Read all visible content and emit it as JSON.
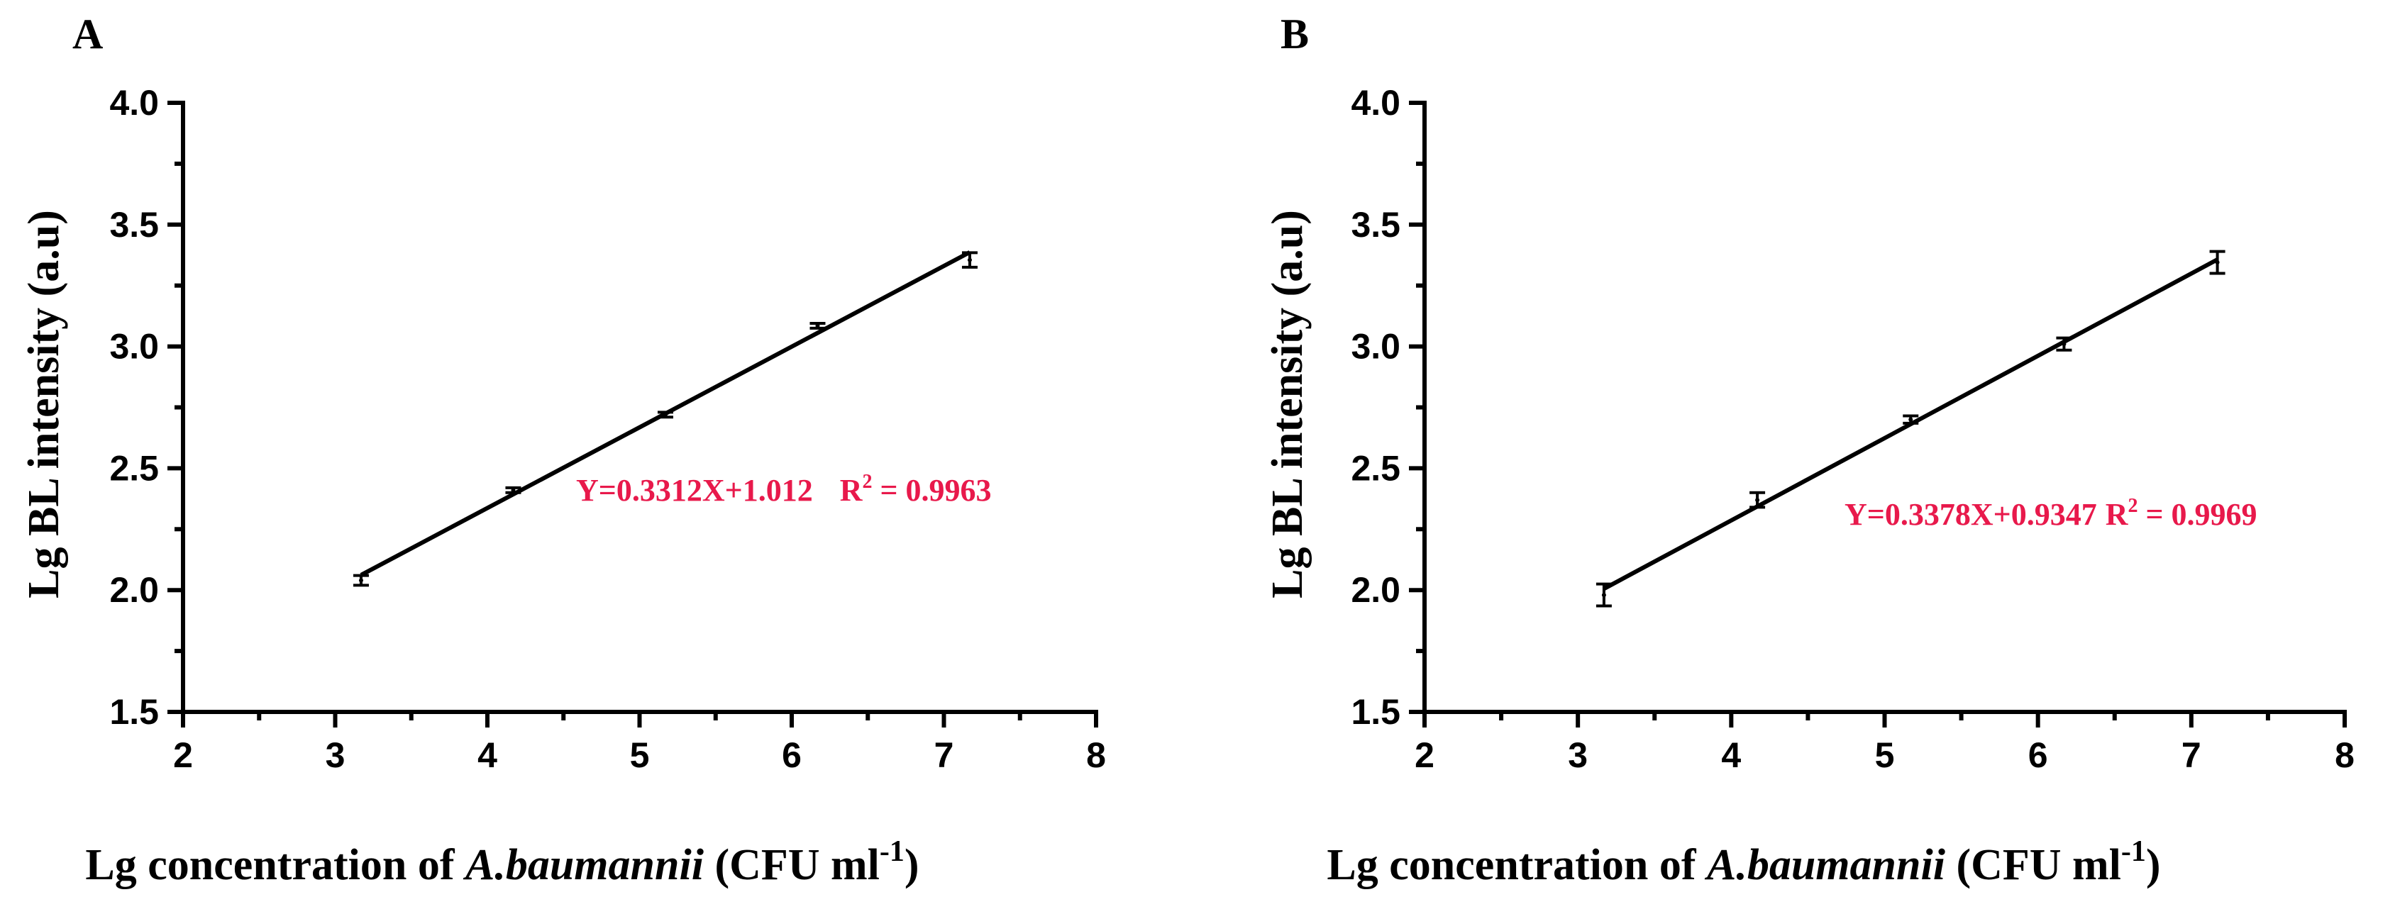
{
  "chart_data": [
    {
      "type": "scatter",
      "panel_label": "A",
      "xlabel_prefix": "Lg concentration of ",
      "xlabel_italic": "A.baumannii",
      "xlabel_unit": " (CFU ml",
      "xlabel_sup": "-1",
      "xlabel_close": ")",
      "ylabel": "Lg BL intensity (a.u)",
      "xlim": [
        2,
        8
      ],
      "ylim": [
        1.5,
        4.0
      ],
      "xticks": [
        "2",
        "3",
        "4",
        "5",
        "6",
        "7",
        "8"
      ],
      "yticks": [
        "1.5",
        "2.0",
        "2.5",
        "3.0",
        "3.5",
        "4.0"
      ],
      "points": [
        {
          "x": 3.17,
          "y": 2.04,
          "err": 0.02
        },
        {
          "x": 4.17,
          "y": 2.41,
          "err": 0.01
        },
        {
          "x": 5.17,
          "y": 2.72,
          "err": 0.01
        },
        {
          "x": 6.17,
          "y": 3.085,
          "err": 0.01
        },
        {
          "x": 7.17,
          "y": 3.355,
          "err": 0.03
        }
      ],
      "fit": {
        "slope": 0.3312,
        "intercept": 1.012,
        "x_range": [
          3.17,
          7.17
        ]
      },
      "equation": "Y=0.3312X+1.012",
      "r2_label": "R",
      "r2_sup": "2",
      "r2_value": " = 0.9963",
      "equation_color": "#e8194b"
    },
    {
      "type": "scatter",
      "panel_label": "B",
      "xlabel_prefix": "Lg concentration of ",
      "xlabel_italic": "A.baumannii",
      "xlabel_unit": " (CFU ml",
      "xlabel_sup": "-1",
      "xlabel_close": ")",
      "ylabel": "Lg BL intensity (a.u)",
      "xlim": [
        2,
        8
      ],
      "ylim": [
        1.5,
        4.0
      ],
      "xticks": [
        "2",
        "3",
        "4",
        "5",
        "6",
        "7",
        "8"
      ],
      "yticks": [
        "1.5",
        "2.0",
        "2.5",
        "3.0",
        "3.5",
        "4.0"
      ],
      "points": [
        {
          "x": 3.17,
          "y": 1.98,
          "err": 0.045
        },
        {
          "x": 4.17,
          "y": 2.37,
          "err": 0.03
        },
        {
          "x": 5.17,
          "y": 2.7,
          "err": 0.015
        },
        {
          "x": 6.17,
          "y": 3.01,
          "err": 0.025
        },
        {
          "x": 7.17,
          "y": 3.345,
          "err": 0.045
        }
      ],
      "fit": {
        "slope": 0.3378,
        "intercept": 0.9347,
        "x_range": [
          3.17,
          7.17
        ]
      },
      "equation": "Y=0.3378X+0.9347",
      "r2_label": "R",
      "r2_sup": "2",
      "r2_value": " = 0.9969",
      "equation_color": "#e8194b"
    }
  ]
}
